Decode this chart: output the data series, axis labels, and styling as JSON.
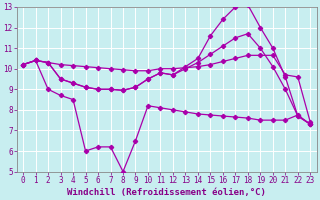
{
  "xlabel": "Windchill (Refroidissement éolien,°C)",
  "bg_color": "#c8eef0",
  "grid_color": "#ffffff",
  "line_color": "#aa00aa",
  "xlim": [
    -0.5,
    23.5
  ],
  "ylim": [
    5,
    13
  ],
  "xticks": [
    0,
    1,
    2,
    3,
    4,
    5,
    6,
    7,
    8,
    9,
    10,
    11,
    12,
    13,
    14,
    15,
    16,
    17,
    18,
    19,
    20,
    21,
    22,
    23
  ],
  "yticks": [
    5,
    6,
    7,
    8,
    9,
    10,
    11,
    12,
    13
  ],
  "line1_x": [
    0,
    1,
    2,
    3,
    4,
    5,
    6,
    7,
    8,
    9,
    10,
    11,
    12,
    13,
    14,
    15,
    16,
    17,
    18,
    19,
    20,
    21,
    22,
    23
  ],
  "line1_y": [
    10.2,
    10.4,
    10.3,
    10.2,
    10.15,
    10.1,
    10.05,
    10.0,
    9.95,
    9.9,
    9.9,
    10.0,
    10.0,
    10.05,
    10.1,
    10.2,
    10.35,
    10.5,
    10.65,
    10.65,
    10.65,
    9.7,
    9.6,
    7.4
  ],
  "line2_x": [
    0,
    1,
    2,
    3,
    4,
    5,
    6,
    7,
    8,
    9,
    10,
    11,
    12,
    13,
    14,
    15,
    16,
    17,
    18,
    19,
    20,
    21,
    22,
    23
  ],
  "line2_y": [
    10.2,
    10.4,
    10.3,
    9.5,
    9.3,
    9.1,
    9.0,
    9.0,
    8.95,
    9.1,
    9.5,
    9.8,
    9.7,
    10.1,
    10.5,
    11.6,
    12.4,
    13.0,
    13.1,
    12.0,
    11.0,
    9.6,
    7.7,
    7.3
  ],
  "line3_x": [
    0,
    1,
    2,
    3,
    4,
    5,
    6,
    7,
    8,
    9,
    10,
    11,
    12,
    13,
    14,
    15,
    16,
    17,
    18,
    19,
    20,
    21,
    22,
    23
  ],
  "line3_y": [
    10.2,
    10.4,
    10.3,
    9.5,
    9.3,
    9.1,
    9.0,
    9.0,
    8.95,
    9.1,
    9.5,
    9.8,
    9.7,
    10.0,
    10.3,
    10.7,
    11.1,
    11.5,
    11.7,
    11.0,
    10.1,
    9.0,
    7.7,
    7.3
  ],
  "line4_x": [
    0,
    1,
    2,
    3,
    4,
    5,
    6,
    7,
    8,
    9,
    10,
    11,
    12,
    13,
    14,
    15,
    16,
    17,
    18,
    19,
    20,
    21,
    22,
    23
  ],
  "line4_y": [
    10.2,
    10.4,
    9.0,
    8.7,
    8.5,
    6.0,
    6.2,
    6.2,
    5.0,
    6.5,
    8.2,
    8.1,
    8.0,
    7.9,
    7.8,
    7.75,
    7.7,
    7.65,
    7.6,
    7.5,
    7.5,
    7.5,
    7.75,
    7.3
  ],
  "tick_fontsize": 5.5,
  "label_fontsize": 6.5
}
